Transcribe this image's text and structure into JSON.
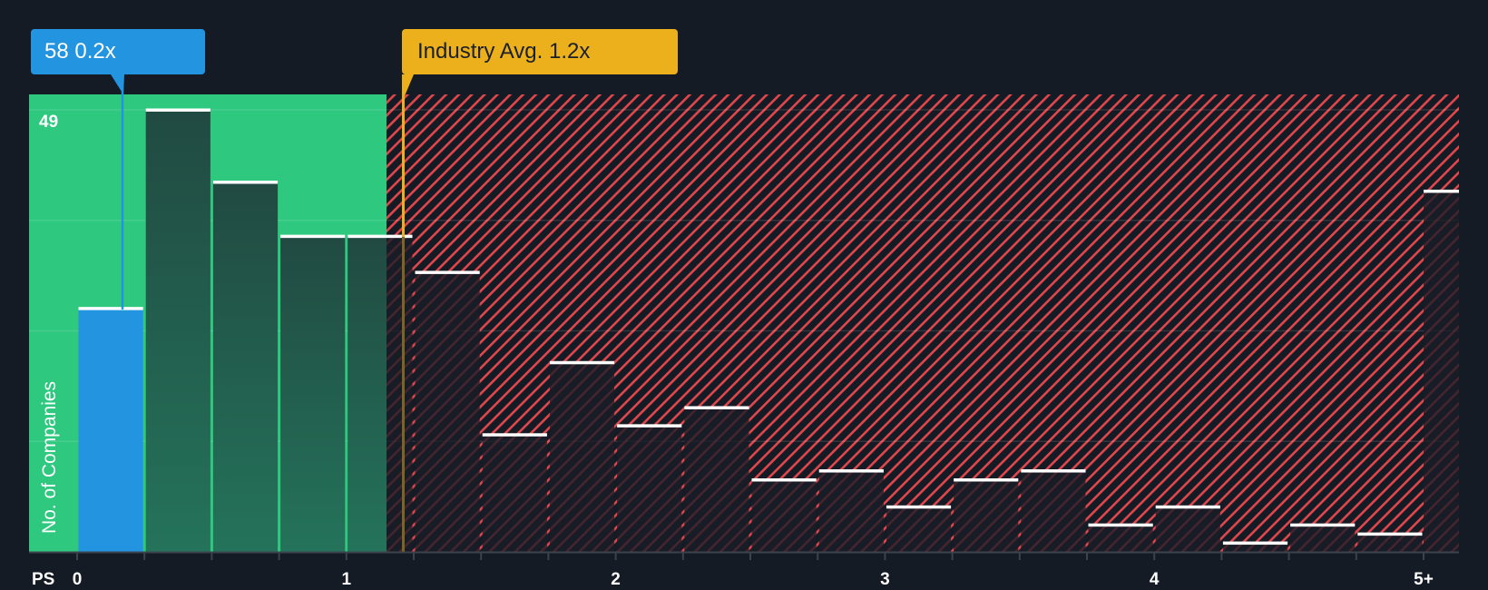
{
  "chart_data": {
    "type": "bar",
    "title": "",
    "xlabel": "PS",
    "ylabel": "No. of Companies",
    "x_tick_labels": [
      "0",
      "1",
      "2",
      "3",
      "4",
      "5+"
    ],
    "y_max_label": "49",
    "ylim": [
      0,
      49
    ],
    "bin_width": 0.25,
    "categories": [
      "0-0.25",
      "0.25-0.5",
      "0.5-0.75",
      "0.75-1.0",
      "1.0-1.25",
      "1.25-1.5",
      "1.5-1.75",
      "1.75-2.0",
      "2.0-2.25",
      "2.25-2.5",
      "2.5-2.75",
      "2.75-3.0",
      "3.0-3.25",
      "3.25-3.5",
      "3.5-3.75",
      "3.75-4.0",
      "4.0-4.25",
      "4.25-4.5",
      "4.5-4.75",
      "4.75-5.0",
      "5+"
    ],
    "values": [
      27,
      49,
      41,
      35,
      35,
      31,
      13,
      21,
      14,
      16,
      8,
      9,
      5,
      8,
      9,
      3,
      5,
      1,
      3,
      2,
      40
    ],
    "highlight": {
      "label": "58 0.2x",
      "company": "58",
      "value": 0.2,
      "bin_index": 0,
      "color": "#2394df"
    },
    "industry_average": {
      "label": "Industry Avg. 1.2x",
      "value": 1.2,
      "color": "#ebb01c"
    },
    "regions": [
      {
        "name": "undervalued",
        "from": 0,
        "to": 1.15,
        "color": "#2ec87f"
      },
      {
        "name": "overvalued",
        "from": 1.15,
        "to": "5+",
        "color": "#e0474c",
        "pattern": "diagonal-hatch"
      }
    ],
    "grid": true,
    "legend": null
  },
  "labels": {
    "highlight_callout": "58 0.2x",
    "industry_callout": "Industry Avg. 1.2x",
    "y_axis": "No. of Companies",
    "y_max": "49",
    "x_axis": "PS"
  },
  "colors": {
    "background": "#151b24",
    "green_region": "#2ec87f",
    "hatch_red": "#e0474c",
    "highlight_blue": "#2394df",
    "industry_yellow": "#ebb01c",
    "bar_dark_green_top": "#214a42",
    "bar_dark_green_bottom": "#24735a",
    "bar_cap": "#ffffff",
    "axis": "#3c434d"
  }
}
